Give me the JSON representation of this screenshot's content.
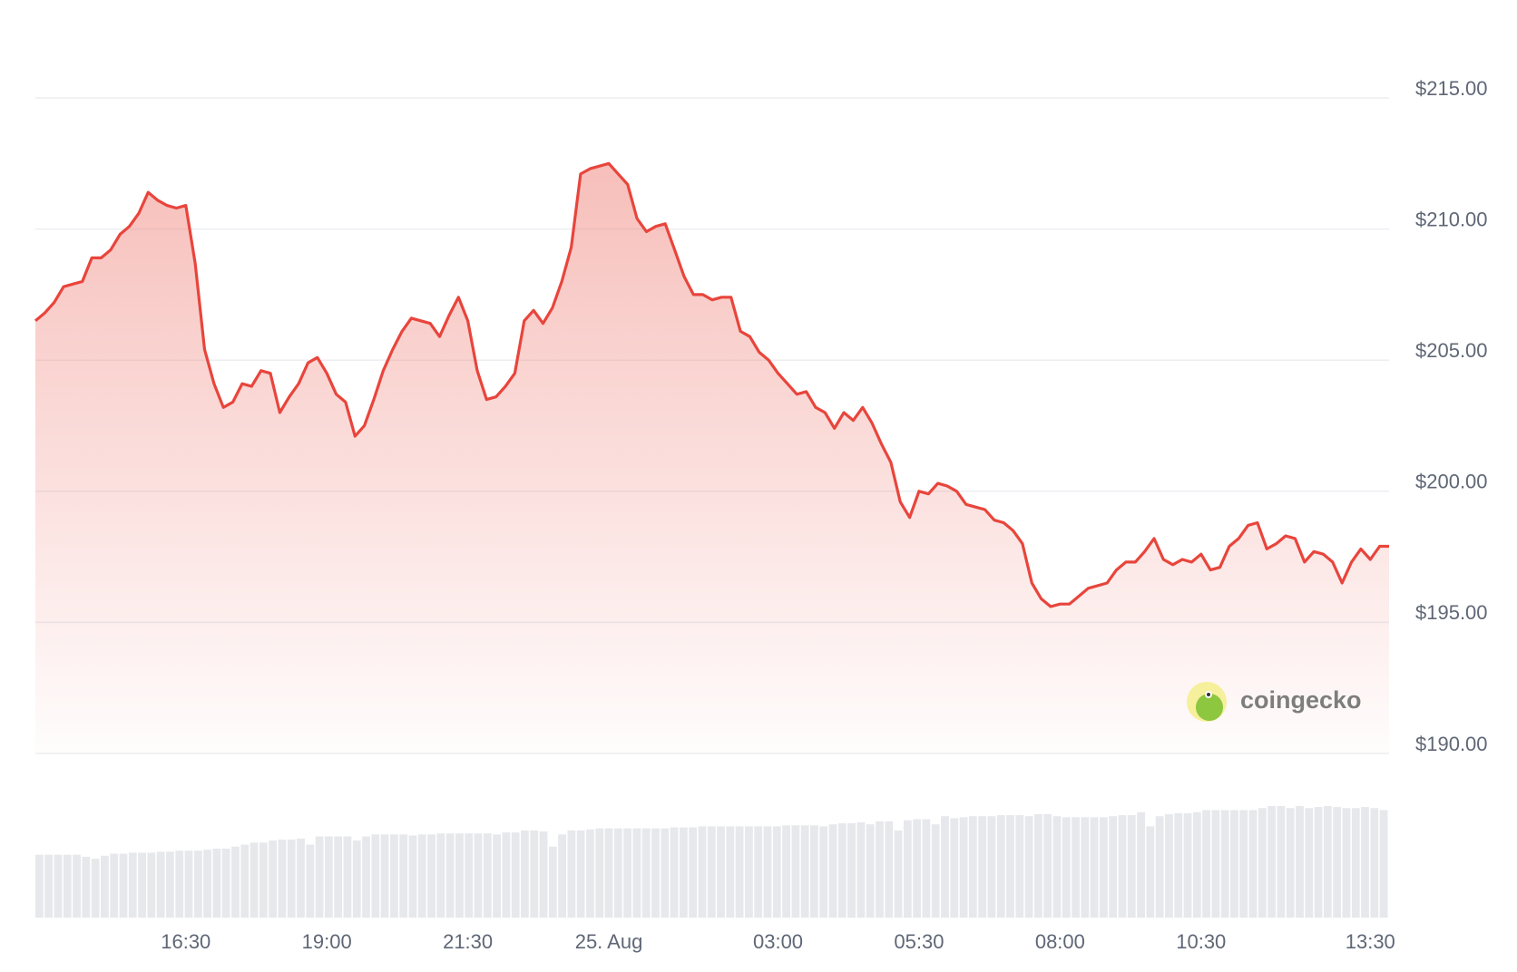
{
  "chart_data": {
    "type": "line",
    "categories": [
      null,
      null,
      null,
      null,
      null,
      null,
      null,
      null,
      null,
      null,
      null,
      null,
      null,
      null,
      null,
      null,
      "16:30",
      null,
      null,
      null,
      null,
      null,
      null,
      null,
      null,
      null,
      null,
      null,
      null,
      null,
      null,
      "19:00",
      null,
      null,
      null,
      null,
      null,
      null,
      null,
      null,
      null,
      null,
      null,
      null,
      null,
      null,
      "21:30",
      null,
      null,
      null,
      null,
      null,
      null,
      null,
      null,
      null,
      null,
      null,
      null,
      null,
      null,
      "25. Aug",
      null,
      null,
      null,
      null,
      null,
      null,
      null,
      null,
      null,
      null,
      null,
      null,
      null,
      null,
      null,
      null,
      null,
      "03:00",
      null,
      null,
      null,
      null,
      null,
      null,
      null,
      null,
      null,
      null,
      null,
      null,
      null,
      null,
      "05:30",
      null,
      null,
      null,
      null,
      null,
      null,
      null,
      null,
      null,
      null,
      null,
      null,
      null,
      null,
      "08:00",
      null,
      null,
      null,
      null,
      null,
      null,
      null,
      null,
      null,
      null,
      null,
      null,
      null,
      null,
      "10:30",
      null,
      null,
      null,
      null,
      null,
      null,
      null,
      null,
      null,
      null,
      null,
      null,
      null,
      null,
      null,
      null,
      null,
      "13:30",
      null,
      null
    ],
    "values": [
      206.5,
      206.8,
      207.2,
      207.8,
      207.9,
      208.0,
      208.9,
      208.9,
      209.2,
      209.8,
      210.1,
      210.6,
      211.4,
      211.1,
      210.9,
      210.8,
      210.9,
      208.7,
      205.4,
      204.1,
      203.2,
      203.4,
      204.1,
      204.0,
      204.6,
      204.5,
      203.0,
      203.6,
      204.1,
      204.9,
      205.1,
      204.5,
      203.7,
      203.4,
      202.1,
      202.5,
      203.5,
      204.6,
      205.4,
      206.1,
      206.6,
      206.5,
      206.4,
      205.9,
      206.7,
      207.4,
      206.5,
      204.6,
      203.5,
      203.6,
      204.0,
      204.5,
      206.5,
      206.9,
      206.4,
      207.0,
      208.0,
      209.3,
      212.1,
      212.3,
      212.4,
      212.5,
      212.1,
      211.7,
      210.4,
      209.9,
      210.1,
      210.2,
      209.2,
      208.2,
      207.5,
      207.5,
      207.3,
      207.4,
      207.4,
      206.1,
      205.9,
      205.3,
      205.0,
      204.5,
      204.1,
      203.7,
      203.8,
      203.2,
      203.0,
      202.4,
      203.0,
      202.7,
      203.2,
      202.6,
      201.8,
      201.1,
      199.6,
      199.0,
      200.0,
      199.9,
      200.3,
      200.2,
      200.0,
      199.5,
      199.4,
      199.3,
      198.9,
      198.8,
      198.5,
      198.0,
      196.5,
      195.9,
      195.6,
      195.7,
      195.7,
      196.0,
      196.3,
      196.4,
      196.5,
      197.0,
      197.3,
      197.3,
      197.7,
      198.2,
      197.4,
      197.2,
      197.4,
      197.3,
      197.6,
      197.0,
      197.1,
      197.9,
      198.2,
      198.7,
      198.8,
      197.8,
      198.0,
      198.3,
      198.2,
      197.3,
      197.7,
      197.6,
      197.3,
      196.5,
      197.3,
      197.8,
      197.4,
      197.9,
      197.9
    ],
    "volume": [
      62,
      62,
      62,
      62,
      62,
      60,
      58,
      61,
      63,
      63,
      64,
      64,
      64,
      65,
      65,
      66,
      66,
      66,
      67,
      68,
      68,
      70,
      72,
      74,
      74,
      76,
      77,
      77,
      78,
      72,
      80,
      80,
      80,
      80,
      76,
      80,
      82,
      82,
      82,
      82,
      81,
      82,
      82,
      83,
      83,
      83,
      83,
      83,
      83,
      82,
      84,
      84,
      86,
      86,
      85,
      70,
      82,
      86,
      86,
      87,
      88,
      88,
      88,
      88,
      88,
      88,
      88,
      88,
      89,
      89,
      89,
      90,
      90,
      90,
      90,
      90,
      90,
      90,
      90,
      90,
      91,
      91,
      91,
      91,
      90,
      92,
      93,
      93,
      94,
      92,
      95,
      95,
      86,
      96,
      97,
      97,
      92,
      100,
      98,
      99,
      100,
      100,
      100,
      101,
      101,
      101,
      100,
      102,
      102,
      100,
      99,
      99,
      99,
      99,
      99,
      100,
      101,
      101,
      104,
      90,
      100,
      102,
      103,
      103,
      104,
      106,
      106,
      106,
      106,
      106,
      106,
      108,
      110,
      110,
      108,
      110,
      108,
      109,
      110,
      109,
      108,
      108,
      109,
      108,
      106
    ],
    "color": "#e8453c",
    "volume_color": "#e6e8ec",
    "ylim": [
      190,
      215
    ],
    "yticks": [
      {
        "value": 190,
        "label": "$190.00"
      },
      {
        "value": 195,
        "label": "$195.00"
      },
      {
        "value": 200,
        "label": "$200.00"
      },
      {
        "value": 205,
        "label": "$205.00"
      },
      {
        "value": 210,
        "label": "$210.00"
      },
      {
        "value": 215,
        "label": "$215.00"
      }
    ],
    "grid": true,
    "watermark": "coingecko"
  }
}
